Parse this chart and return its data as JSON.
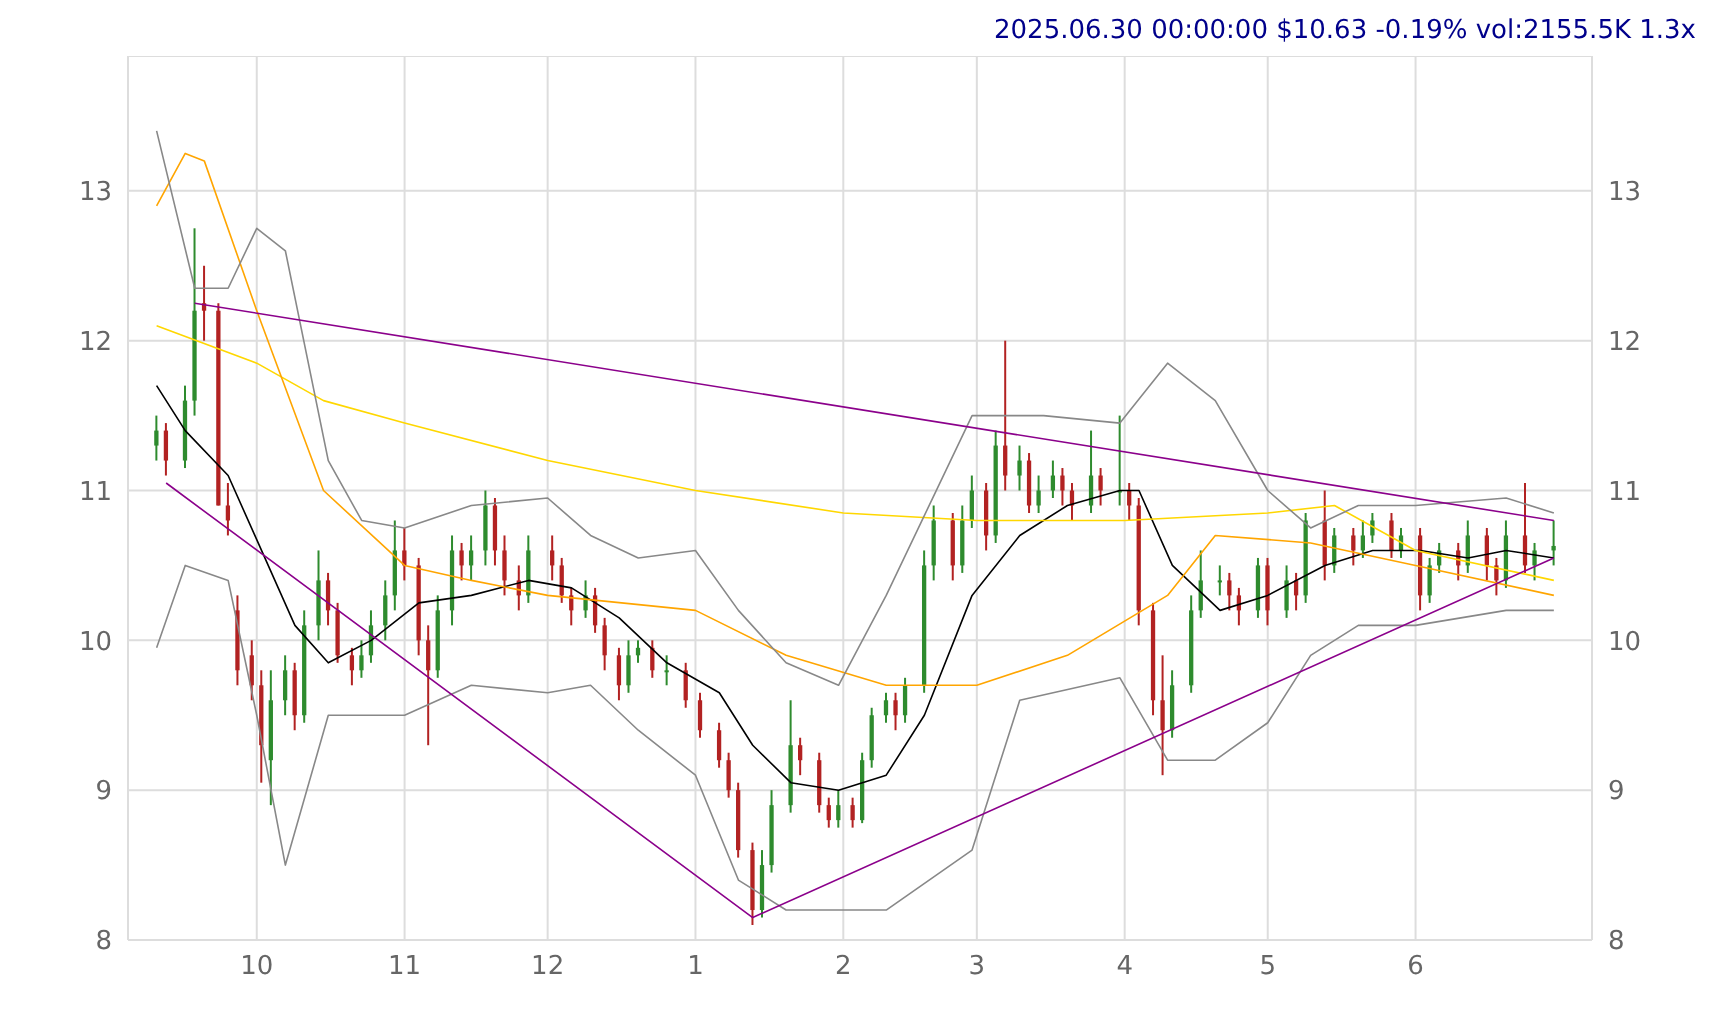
{
  "chart_data": {
    "type": "candlestick",
    "title": "2025.06.30 00:00:00 $10.63 -0.19% vol:2155.5K 1.3x",
    "x": [
      "2024-09-10",
      "2024-09-12",
      "2024-09-16",
      "2024-09-18",
      "2024-09-20",
      "2024-09-23",
      "2024-09-25",
      "2024-09-27",
      "2024-09-30",
      "2024-10-02",
      "2024-10-04",
      "2024-10-07",
      "2024-10-09",
      "2024-10-11",
      "2024-10-14",
      "2024-10-16",
      "2024-10-18",
      "2024-10-21",
      "2024-10-23",
      "2024-10-25",
      "2024-10-28",
      "2024-10-30",
      "2024-11-01",
      "2024-11-04",
      "2024-11-06",
      "2024-11-08",
      "2024-11-11",
      "2024-11-13",
      "2024-11-15",
      "2024-11-18",
      "2024-11-20",
      "2024-11-22",
      "2024-11-25",
      "2024-11-27",
      "2024-12-02",
      "2024-12-04",
      "2024-12-06",
      "2024-12-09",
      "2024-12-11",
      "2024-12-13",
      "2024-12-16",
      "2024-12-18",
      "2024-12-20",
      "2024-12-23",
      "2024-12-26",
      "2024-12-30",
      "2025-01-02",
      "2025-01-06",
      "2025-01-08",
      "2025-01-10",
      "2025-01-13",
      "2025-01-15",
      "2025-01-17",
      "2025-01-21",
      "2025-01-23",
      "2025-01-27",
      "2025-01-29",
      "2025-01-31",
      "2025-02-03",
      "2025-02-05",
      "2025-02-07",
      "2025-02-10",
      "2025-02-12",
      "2025-02-14",
      "2025-02-18",
      "2025-02-20",
      "2025-02-24",
      "2025-02-26",
      "2025-02-28",
      "2025-03-03",
      "2025-03-05",
      "2025-03-07",
      "2025-03-10",
      "2025-03-12",
      "2025-03-14",
      "2025-03-17",
      "2025-03-19",
      "2025-03-21",
      "2025-03-25",
      "2025-03-27",
      "2025-03-31",
      "2025-04-02",
      "2025-04-04",
      "2025-04-07",
      "2025-04-09",
      "2025-04-11",
      "2025-04-15",
      "2025-04-17",
      "2025-04-21",
      "2025-04-23",
      "2025-04-25",
      "2025-04-29",
      "2025-05-01",
      "2025-05-05",
      "2025-05-07",
      "2025-05-09",
      "2025-05-13",
      "2025-05-15",
      "2025-05-19",
      "2025-05-21",
      "2025-05-23",
      "2025-05-27",
      "2025-05-29",
      "2025-06-02",
      "2025-06-04",
      "2025-06-06",
      "2025-06-10",
      "2025-06-12",
      "2025-06-16",
      "2025-06-18",
      "2025-06-20",
      "2025-06-24",
      "2025-06-26",
      "2025-06-30"
    ],
    "ohlc": [
      [
        11.3,
        11.5,
        11.2,
        11.4
      ],
      [
        11.4,
        11.45,
        11.1,
        11.2
      ],
      [
        11.2,
        11.7,
        11.15,
        11.6
      ],
      [
        11.6,
        12.75,
        11.5,
        12.2
      ],
      [
        12.25,
        12.5,
        12.0,
        12.2
      ],
      [
        12.2,
        12.25,
        10.9,
        10.9
      ],
      [
        10.9,
        11.05,
        10.7,
        10.8
      ],
      [
        10.2,
        10.3,
        9.7,
        9.8
      ],
      [
        9.9,
        10.0,
        9.6,
        9.7
      ],
      [
        9.7,
        9.8,
        9.05,
        9.3
      ],
      [
        9.2,
        9.8,
        8.9,
        9.6
      ],
      [
        9.6,
        9.9,
        9.5,
        9.8
      ],
      [
        9.8,
        9.85,
        9.4,
        9.5
      ],
      [
        9.5,
        10.2,
        9.45,
        10.1
      ],
      [
        10.1,
        10.6,
        10.0,
        10.4
      ],
      [
        10.4,
        10.45,
        10.1,
        10.2
      ],
      [
        10.2,
        10.25,
        9.85,
        9.9
      ],
      [
        9.9,
        9.95,
        9.7,
        9.8
      ],
      [
        9.8,
        10.0,
        9.75,
        9.9
      ],
      [
        9.9,
        10.2,
        9.85,
        10.1
      ],
      [
        10.1,
        10.4,
        10.0,
        10.3
      ],
      [
        10.3,
        10.8,
        10.2,
        10.6
      ],
      [
        10.6,
        10.75,
        10.4,
        10.5
      ],
      [
        10.5,
        10.55,
        9.9,
        10.0
      ],
      [
        10.0,
        10.1,
        9.3,
        9.8
      ],
      [
        9.8,
        10.3,
        9.75,
        10.2
      ],
      [
        10.2,
        10.7,
        10.1,
        10.6
      ],
      [
        10.6,
        10.65,
        10.4,
        10.5
      ],
      [
        10.5,
        10.7,
        10.4,
        10.6
      ],
      [
        10.6,
        11.0,
        10.5,
        10.9
      ],
      [
        10.9,
        10.95,
        10.5,
        10.6
      ],
      [
        10.6,
        10.7,
        10.3,
        10.4
      ],
      [
        10.4,
        10.5,
        10.2,
        10.3
      ],
      [
        10.3,
        10.7,
        10.25,
        10.6
      ],
      [
        10.6,
        10.7,
        10.4,
        10.5
      ],
      [
        10.5,
        10.55,
        10.25,
        10.3
      ],
      [
        10.3,
        10.35,
        10.1,
        10.2
      ],
      [
        10.2,
        10.4,
        10.15,
        10.3
      ],
      [
        10.3,
        10.35,
        10.05,
        10.1
      ],
      [
        10.1,
        10.15,
        9.8,
        9.9
      ],
      [
        9.9,
        9.95,
        9.6,
        9.7
      ],
      [
        9.7,
        10.0,
        9.65,
        9.9
      ],
      [
        9.9,
        10.0,
        9.85,
        9.95
      ],
      [
        9.95,
        10.0,
        9.75,
        9.8
      ],
      [
        9.8,
        9.9,
        9.7,
        9.8
      ],
      [
        9.8,
        9.85,
        9.55,
        9.6
      ],
      [
        9.6,
        9.65,
        9.35,
        9.4
      ],
      [
        9.4,
        9.45,
        9.15,
        9.2
      ],
      [
        9.2,
        9.25,
        8.95,
        9.0
      ],
      [
        9.0,
        9.05,
        8.55,
        8.6
      ],
      [
        8.6,
        8.65,
        8.1,
        8.2
      ],
      [
        8.2,
        8.6,
        8.15,
        8.5
      ],
      [
        8.5,
        9.0,
        8.45,
        8.9
      ],
      [
        8.9,
        9.6,
        8.85,
        9.3
      ],
      [
        9.3,
        9.35,
        9.1,
        9.2
      ],
      [
        9.2,
        9.25,
        8.85,
        8.9
      ],
      [
        8.9,
        8.95,
        8.75,
        8.8
      ],
      [
        8.8,
        9.0,
        8.75,
        8.9
      ],
      [
        8.9,
        8.95,
        8.75,
        8.8
      ],
      [
        8.8,
        9.25,
        8.78,
        9.2
      ],
      [
        9.2,
        9.55,
        9.15,
        9.5
      ],
      [
        9.5,
        9.65,
        9.45,
        9.6
      ],
      [
        9.6,
        9.65,
        9.4,
        9.5
      ],
      [
        9.5,
        9.75,
        9.45,
        9.7
      ],
      [
        9.7,
        10.6,
        9.65,
        10.5
      ],
      [
        10.5,
        10.9,
        10.4,
        10.8
      ],
      [
        10.8,
        10.85,
        10.4,
        10.5
      ],
      [
        10.5,
        10.9,
        10.45,
        10.8
      ],
      [
        10.8,
        11.1,
        10.75,
        11.0
      ],
      [
        11.0,
        11.05,
        10.6,
        10.7
      ],
      [
        10.7,
        11.4,
        10.65,
        11.3
      ],
      [
        11.3,
        12.0,
        11.0,
        11.1
      ],
      [
        11.1,
        11.3,
        11.0,
        11.2
      ],
      [
        11.2,
        11.25,
        10.85,
        10.9
      ],
      [
        10.9,
        11.1,
        10.85,
        11.0
      ],
      [
        11.0,
        11.2,
        10.95,
        11.1
      ],
      [
        11.1,
        11.15,
        10.9,
        11.0
      ],
      [
        11.0,
        11.05,
        10.8,
        10.9
      ],
      [
        10.9,
        11.4,
        10.85,
        11.1
      ],
      [
        11.1,
        11.15,
        10.9,
        11.0
      ],
      [
        11.0,
        11.5,
        10.9,
        11.0
      ],
      [
        11.0,
        11.05,
        10.8,
        10.9
      ],
      [
        10.9,
        10.95,
        10.1,
        10.2
      ],
      [
        10.2,
        10.25,
        9.5,
        9.6
      ],
      [
        9.6,
        9.9,
        9.1,
        9.4
      ],
      [
        9.4,
        9.8,
        9.35,
        9.7
      ],
      [
        9.7,
        10.3,
        9.65,
        10.2
      ],
      [
        10.2,
        10.6,
        10.15,
        10.4
      ],
      [
        10.4,
        10.5,
        10.3,
        10.4
      ],
      [
        10.4,
        10.45,
        10.2,
        10.3
      ],
      [
        10.3,
        10.35,
        10.1,
        10.2
      ],
      [
        10.2,
        10.55,
        10.15,
        10.5
      ],
      [
        10.5,
        10.55,
        10.1,
        10.2
      ],
      [
        10.2,
        10.5,
        10.15,
        10.4
      ],
      [
        10.4,
        10.45,
        10.2,
        10.3
      ],
      [
        10.3,
        10.85,
        10.25,
        10.8
      ],
      [
        10.8,
        11.0,
        10.4,
        10.5
      ],
      [
        10.5,
        10.75,
        10.45,
        10.7
      ],
      [
        10.7,
        10.75,
        10.5,
        10.6
      ],
      [
        10.6,
        10.8,
        10.55,
        10.7
      ],
      [
        10.7,
        10.85,
        10.65,
        10.8
      ],
      [
        10.8,
        10.85,
        10.55,
        10.6
      ],
      [
        10.6,
        10.75,
        10.55,
        10.7
      ],
      [
        10.7,
        10.75,
        10.2,
        10.3
      ],
      [
        10.3,
        10.55,
        10.25,
        10.5
      ],
      [
        10.5,
        10.65,
        10.45,
        10.6
      ],
      [
        10.6,
        10.65,
        10.4,
        10.5
      ],
      [
        10.5,
        10.8,
        10.45,
        10.7
      ],
      [
        10.7,
        10.75,
        10.4,
        10.5
      ],
      [
        10.5,
        10.55,
        10.3,
        10.4
      ],
      [
        10.4,
        10.8,
        10.35,
        10.7
      ],
      [
        10.7,
        11.05,
        10.45,
        10.5
      ],
      [
        10.5,
        10.65,
        10.4,
        10.6
      ],
      [
        10.6,
        10.8,
        10.5,
        10.63
      ]
    ],
    "colors": [
      "#2e8b2e",
      "#b22222",
      "#2e8b2e",
      "#2e8b2e",
      "#b22222",
      "#b22222",
      "#b22222",
      "#b22222",
      "#b22222",
      "#b22222",
      "#2e8b2e",
      "#2e8b2e",
      "#b22222",
      "#2e8b2e",
      "#2e8b2e",
      "#b22222",
      "#b22222",
      "#b22222",
      "#2e8b2e",
      "#2e8b2e",
      "#2e8b2e",
      "#2e8b2e",
      "#b22222",
      "#b22222",
      "#b22222",
      "#2e8b2e",
      "#2e8b2e",
      "#b22222",
      "#2e8b2e",
      "#2e8b2e",
      "#b22222",
      "#b22222",
      "#b22222",
      "#2e8b2e",
      "#b22222",
      "#b22222",
      "#b22222",
      "#2e8b2e",
      "#b22222",
      "#b22222",
      "#b22222",
      "#2e8b2e",
      "#2e8b2e",
      "#b22222",
      "#2e8b2e",
      "#b22222",
      "#b22222",
      "#b22222",
      "#b22222",
      "#b22222",
      "#b22222",
      "#2e8b2e",
      "#2e8b2e",
      "#2e8b2e",
      "#b22222",
      "#b22222",
      "#b22222",
      "#2e8b2e",
      "#b22222",
      "#2e8b2e",
      "#2e8b2e",
      "#2e8b2e",
      "#b22222",
      "#2e8b2e",
      "#2e8b2e",
      "#2e8b2e",
      "#b22222",
      "#2e8b2e",
      "#2e8b2e",
      "#b22222",
      "#2e8b2e",
      "#b22222",
      "#2e8b2e",
      "#b22222",
      "#2e8b2e",
      "#2e8b2e",
      "#b22222",
      "#b22222",
      "#2e8b2e",
      "#b22222",
      "#2e8b2e",
      "#b22222",
      "#b22222",
      "#b22222",
      "#b22222",
      "#2e8b2e",
      "#2e8b2e",
      "#2e8b2e",
      "#2e8b2e",
      "#b22222",
      "#b22222",
      "#2e8b2e",
      "#b22222",
      "#2e8b2e",
      "#b22222",
      "#2e8b2e",
      "#b22222",
      "#2e8b2e",
      "#b22222",
      "#2e8b2e",
      "#2e8b2e",
      "#b22222",
      "#2e8b2e",
      "#b22222",
      "#2e8b2e",
      "#2e8b2e",
      "#b22222",
      "#2e8b2e",
      "#b22222",
      "#b22222",
      "#2e8b2e",
      "#b22222",
      "#2e8b2e",
      "#2e8b2e"
    ],
    "series": [
      {
        "type": "line",
        "color": "#000000",
        "x": [
          "2024-09-10",
          "2024-09-16",
          "2024-09-25",
          "2024-10-02",
          "2024-10-09",
          "2024-10-16",
          "2024-10-25",
          "2024-11-04",
          "2024-11-15",
          "2024-11-27",
          "2024-12-06",
          "2024-12-16",
          "2024-12-26",
          "2025-01-06",
          "2025-01-13",
          "2025-01-21",
          "2025-01-31",
          "2025-02-10",
          "2025-02-18",
          "2025-02-28",
          "2025-03-10",
          "2025-03-20",
          "2025-03-31",
          "2025-04-04",
          "2025-04-11",
          "2025-04-21",
          "2025-05-01",
          "2025-05-13",
          "2025-05-23",
          "2025-06-02",
          "2025-06-12",
          "2025-06-20",
          "2025-06-30"
        ],
        "values": [
          11.7,
          11.4,
          11.1,
          10.6,
          10.1,
          9.85,
          10.0,
          10.25,
          10.3,
          10.4,
          10.35,
          10.15,
          9.85,
          9.65,
          9.3,
          9.05,
          9.0,
          9.1,
          9.5,
          10.3,
          10.7,
          10.9,
          11.0,
          11.0,
          10.5,
          10.2,
          10.3,
          10.5,
          10.6,
          10.6,
          10.55,
          10.6,
          10.55
        ]
      },
      {
        "type": "line",
        "color": "#ffd700",
        "x": [
          "2024-09-10",
          "2024-10-01",
          "2024-10-15",
          "2024-11-01",
          "2024-12-01",
          "2025-01-01",
          "2025-02-01",
          "2025-03-01",
          "2025-04-01",
          "2025-05-01",
          "2025-05-15",
          "2025-06-01",
          "2025-06-30"
        ],
        "values": [
          12.1,
          11.85,
          11.6,
          11.45,
          11.2,
          11.0,
          10.85,
          10.8,
          10.8,
          10.85,
          10.9,
          10.6,
          10.4
        ]
      },
      {
        "type": "line",
        "color": "#ffa500",
        "x": [
          "2024-09-10",
          "2024-09-16",
          "2024-09-20",
          "2024-10-01",
          "2024-10-15",
          "2024-11-01",
          "2024-11-15",
          "2024-12-01",
          "2025-01-01",
          "2025-01-20",
          "2025-02-10",
          "2025-03-01",
          "2025-03-20",
          "2025-04-10",
          "2025-04-20",
          "2025-05-10",
          "2025-06-01",
          "2025-06-30"
        ],
        "values": [
          12.9,
          13.25,
          13.2,
          12.2,
          11.0,
          10.5,
          10.4,
          10.3,
          10.2,
          9.9,
          9.7,
          9.7,
          9.9,
          10.3,
          10.7,
          10.65,
          10.5,
          10.3
        ]
      },
      {
        "type": "line",
        "color": "#888888",
        "x": [
          "2024-09-10",
          "2024-09-18",
          "2024-09-25",
          "2024-10-01",
          "2024-10-07",
          "2024-10-16",
          "2024-10-23",
          "2024-11-01",
          "2024-11-15",
          "2024-12-01",
          "2024-12-10",
          "2024-12-20",
          "2025-01-01",
          "2025-01-10",
          "2025-01-20",
          "2025-01-31",
          "2025-02-10",
          "2025-02-28",
          "2025-03-15",
          "2025-03-31",
          "2025-04-10",
          "2025-04-20",
          "2025-05-01",
          "2025-05-10",
          "2025-05-20",
          "2025-06-01",
          "2025-06-20",
          "2025-06-30"
        ],
        "values": [
          13.4,
          12.35,
          12.35,
          12.75,
          12.6,
          11.2,
          10.8,
          10.75,
          10.9,
          10.95,
          10.7,
          10.55,
          10.6,
          10.2,
          9.85,
          9.7,
          10.3,
          11.5,
          11.5,
          11.45,
          11.85,
          11.6,
          11.0,
          10.75,
          10.9,
          10.9,
          10.95,
          10.85
        ]
      },
      {
        "type": "line",
        "color": "#888888",
        "x": [
          "2024-09-10",
          "2024-09-16",
          "2024-09-25",
          "2024-10-01",
          "2024-10-07",
          "2024-10-16",
          "2024-11-01",
          "2024-11-15",
          "2024-12-01",
          "2024-12-10",
          "2024-12-20",
          "2025-01-01",
          "2025-01-10",
          "2025-01-20",
          "2025-01-31",
          "2025-02-10",
          "2025-02-28",
          "2025-03-10",
          "2025-03-31",
          "2025-04-10",
          "2025-04-20",
          "2025-05-01",
          "2025-05-10",
          "2025-05-20",
          "2025-06-01",
          "2025-06-20",
          "2025-06-30"
        ],
        "values": [
          9.95,
          10.5,
          10.4,
          9.5,
          8.5,
          9.5,
          9.5,
          9.7,
          9.65,
          9.7,
          9.4,
          9.1,
          8.4,
          8.2,
          8.2,
          8.2,
          8.6,
          9.6,
          9.75,
          9.2,
          9.2,
          9.45,
          9.9,
          10.1,
          10.1,
          10.2,
          10.2
        ]
      },
      {
        "type": "line",
        "color": "#8b008b",
        "x": [
          "2024-09-18",
          "2025-06-30"
        ],
        "values": [
          12.25,
          10.8
        ]
      },
      {
        "type": "line",
        "color": "#8b008b",
        "x": [
          "2024-09-12",
          "2025-01-13",
          "2025-06-30"
        ],
        "values": [
          11.05,
          8.15,
          10.55
        ]
      }
    ],
    "xlim": [
      "2024-09-04",
      "2025-07-08"
    ],
    "xticks": [
      {
        "value": "2024-10-01",
        "label": "10"
      },
      {
        "value": "2024-11-01",
        "label": "11"
      },
      {
        "value": "2024-12-01",
        "label": "12"
      },
      {
        "value": "2025-01-01",
        "label": "1"
      },
      {
        "value": "2025-02-01",
        "label": "2"
      },
      {
        "value": "2025-03-01",
        "label": "3"
      },
      {
        "value": "2025-04-01",
        "label": "4"
      },
      {
        "value": "2025-05-01",
        "label": "5"
      },
      {
        "value": "2025-06-01",
        "label": "6"
      }
    ],
    "ylim": [
      8,
      13.9
    ],
    "yticks": [
      8,
      9,
      10,
      11,
      12,
      13
    ],
    "y2lim": [
      8,
      13.9
    ],
    "y2ticks": [
      8,
      9,
      10,
      11,
      12,
      13
    ],
    "grid": true,
    "legend": false
  }
}
